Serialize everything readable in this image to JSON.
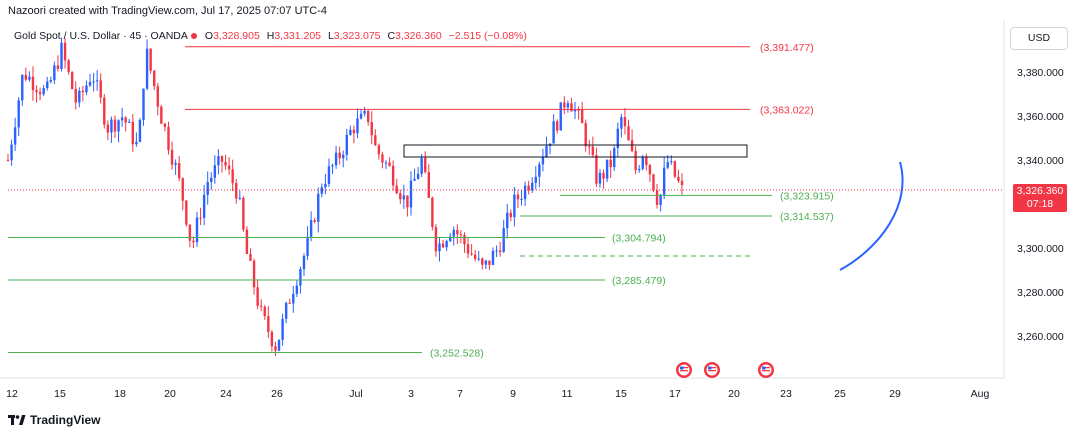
{
  "header": {
    "credit": "Nazoori created with TradingView.com, Jul 17, 2025 07:07 UTC-4",
    "symbol": "Gold Spot / U.S. Dollar · 45 · OANDA",
    "open_label": "O",
    "open": "3,328.905",
    "high_label": "H",
    "high": "3,331.205",
    "low_label": "L",
    "low": "3,323.075",
    "close_label": "C",
    "close": "3,326.360",
    "change": "−2.515 (−0.08%)"
  },
  "currency_button": "USD",
  "last_price": {
    "price": "3,326.360",
    "countdown": "07:18"
  },
  "brand": "TradingView",
  "colors": {
    "up": "#2962ff",
    "down": "#f23645",
    "support": "#4caf50",
    "resistance": "#f23645",
    "curve": "#2962ff"
  },
  "chart_data": {
    "type": "candlestick",
    "x_tick_labels": [
      "12",
      "15",
      "18",
      "20",
      "24",
      "26",
      "Jul",
      "3",
      "7",
      "9",
      "11",
      "15",
      "17",
      "20",
      "23",
      "25",
      "29",
      "Aug"
    ],
    "y_tick_labels": [
      "3,380.000",
      "3,360.000",
      "3,340.000",
      "3,320.000",
      "3,300.000",
      "3,280.000",
      "3,260.000"
    ],
    "ylim": [
      3245,
      3400
    ],
    "last_price": 3326.36,
    "price_path": [
      [
        0,
        3340
      ],
      [
        2,
        3380
      ],
      [
        5,
        3370
      ],
      [
        7,
        3390
      ],
      [
        9,
        3365
      ],
      [
        11,
        3380
      ],
      [
        13,
        3355
      ],
      [
        15,
        3360
      ],
      [
        17,
        3345
      ],
      [
        18,
        3390
      ],
      [
        20,
        3360
      ],
      [
        22,
        3335
      ],
      [
        23,
        3320
      ],
      [
        24,
        3300
      ],
      [
        26,
        3330
      ],
      [
        28,
        3340
      ],
      [
        30,
        3325
      ],
      [
        31,
        3300
      ],
      [
        33,
        3270
      ],
      [
        35,
        3255
      ],
      [
        37,
        3280
      ],
      [
        39,
        3300
      ],
      [
        41,
        3330
      ],
      [
        43,
        3340
      ],
      [
        45,
        3355
      ],
      [
        47,
        3360
      ],
      [
        48,
        3345
      ],
      [
        50,
        3335
      ],
      [
        52,
        3320
      ],
      [
        54,
        3340
      ],
      [
        56,
        3300
      ],
      [
        58,
        3310
      ],
      [
        60,
        3300
      ],
      [
        62,
        3290
      ],
      [
        64,
        3300
      ],
      [
        66,
        3320
      ],
      [
        68,
        3330
      ],
      [
        70,
        3345
      ],
      [
        72,
        3360
      ],
      [
        73,
        3370
      ],
      [
        75,
        3355
      ],
      [
        77,
        3330
      ],
      [
        79,
        3340
      ],
      [
        80,
        3360
      ],
      [
        82,
        3335
      ],
      [
        83,
        3345
      ],
      [
        85,
        3320
      ],
      [
        86,
        3340
      ],
      [
        88,
        3326
      ]
    ],
    "levels": [
      {
        "value": 3391.477,
        "label": "(3,391.477)",
        "kind": "resistance"
      },
      {
        "value": 3363.022,
        "label": "(3,363.022)",
        "kind": "resistance"
      },
      {
        "value": 3323.915,
        "label": "(3,323.915)",
        "kind": "support"
      },
      {
        "value": 3314.537,
        "label": "(3,314.537)",
        "kind": "support"
      },
      {
        "value": 3304.794,
        "label": "(3,304.794)",
        "kind": "support"
      },
      {
        "value": 3285.479,
        "label": "(3,285.479)",
        "kind": "support"
      },
      {
        "value": 3252.528,
        "label": "(3,252.528)",
        "kind": "support"
      }
    ],
    "grid": false,
    "event_markers": 3
  }
}
